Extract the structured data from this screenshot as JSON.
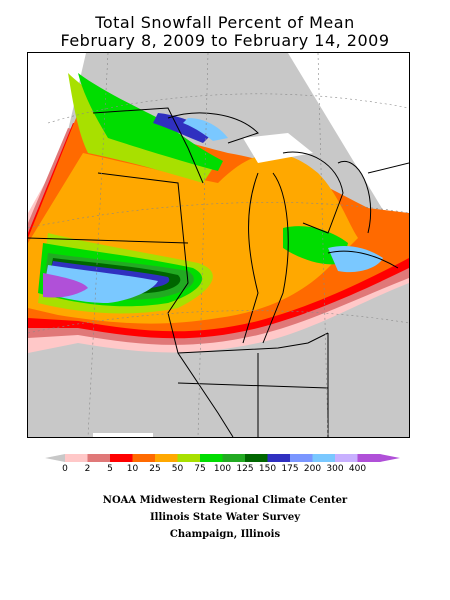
{
  "title_line1": "Total Snowfall Percent of Mean",
  "title_line2": "February 8, 2009 to February 14, 2009",
  "legend": {
    "labels": [
      "0",
      "2",
      "5",
      "10",
      "25",
      "50",
      "75",
      "100",
      "125",
      "150",
      "175",
      "200",
      "300",
      "400"
    ],
    "colors": [
      "#ffc8c8",
      "#e07878",
      "#ff0000",
      "#ff6a00",
      "#ffa800",
      "#a8e000",
      "#00dd00",
      "#22aa22",
      "#006600",
      "#3030c0",
      "#7a96ff",
      "#7ac8ff",
      "#c8b0ff",
      "#b050d8"
    ]
  },
  "credits": {
    "line1": "NOAA Midwestern Regional Climate Center",
    "line2": "Illinois State Water Survey",
    "line3": "Champaign, Illinois"
  },
  "map_colors": {
    "gray": "#c8c8c8",
    "pink": "#ffc8c8",
    "salmon": "#e07878",
    "red": "#ff0000",
    "orange": "#ff6a00",
    "lt_orange": "#ffa800",
    "yellowgreen": "#a8e000",
    "green": "#00dd00",
    "med_green": "#22aa22",
    "dk_green": "#006600",
    "blue": "#3030c0",
    "lt_blue": "#7ac8ff",
    "violet": "#b050d8"
  }
}
